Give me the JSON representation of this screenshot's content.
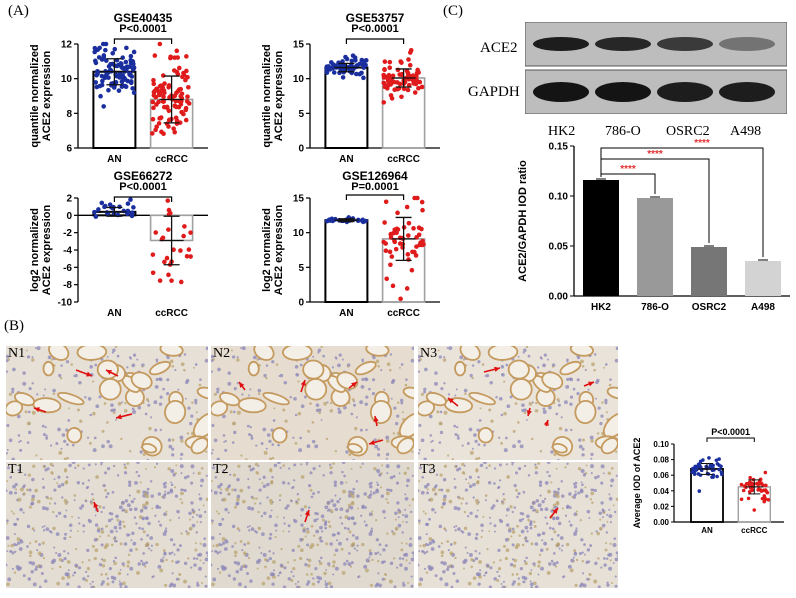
{
  "panels": {
    "A": "(A)",
    "B": "(B)",
    "C": "(C)"
  },
  "chart_data": [
    {
      "id": "gse40435",
      "type": "bar",
      "title": "GSE40435",
      "ylabel": "quantile normalized ACE2 expression",
      "categories": [
        "AN",
        "ccRCC"
      ],
      "values": [
        10.4,
        8.8
      ],
      "sd": [
        0.75,
        1.35
      ],
      "ylim": [
        6,
        12
      ],
      "yticks": [
        6,
        8,
        10,
        12
      ],
      "pvalue": "P<0.0001",
      "colors": [
        "#1a2e9e",
        "#e01b1b"
      ],
      "n_points": [
        100,
        100
      ]
    },
    {
      "id": "gse53757",
      "type": "bar",
      "title": "GSE53757",
      "ylabel": "quantile normalized ACE2 expression",
      "categories": [
        "AN",
        "ccRCC"
      ],
      "values": [
        11.6,
        10.1
      ],
      "sd": [
        0.6,
        1.3
      ],
      "ylim": [
        0,
        15
      ],
      "yticks": [
        0,
        5,
        10,
        15
      ],
      "pvalue": "P<0.0001",
      "colors": [
        "#1a2e9e",
        "#e01b1b"
      ],
      "n_points": [
        72,
        72
      ]
    },
    {
      "id": "gse66272",
      "type": "bar",
      "title": "GSE66272",
      "ylabel": "log2 normalized ACE2 expression",
      "categories": [
        "AN",
        "ccRCC"
      ],
      "values": [
        0.4,
        -2.9
      ],
      "sd": [
        0.5,
        2.8
      ],
      "ylim": [
        -10,
        2
      ],
      "yticks": [
        2,
        0,
        -2,
        -4,
        -6,
        -8,
        -10
      ],
      "pvalue": "P<0.0001",
      "colors": [
        "#1a2e9e",
        "#e01b1b"
      ],
      "n_points": [
        26,
        26
      ]
    },
    {
      "id": "gse126964",
      "type": "bar",
      "title": "GSE126964",
      "ylabel": "log2 normalized ACE2 expression",
      "categories": [
        "AN",
        "ccRCC"
      ],
      "values": [
        11.8,
        9.1
      ],
      "sd": [
        0.2,
        3.1
      ],
      "ylim": [
        0,
        15
      ],
      "yticks": [
        0,
        5,
        10,
        15
      ],
      "pvalue": "P=0.0001",
      "colors": [
        "#1a2e9e",
        "#e01b1b"
      ],
      "n_points": [
        25,
        55
      ]
    },
    {
      "id": "ace2-gapdh",
      "type": "bar",
      "title": "",
      "ylabel": "ACE2/GAPDH IOD ratio",
      "categories": [
        "HK2",
        "786-O",
        "OSRC2",
        "A498"
      ],
      "values": [
        0.116,
        0.098,
        0.049,
        0.035
      ],
      "bar_colors": [
        "#000000",
        "#999999",
        "#767676",
        "#d3d3d3"
      ],
      "ylim": [
        0,
        0.15
      ],
      "yticks": [
        "0.00",
        "0.05",
        "0.10",
        "0.15"
      ],
      "significance": "****",
      "significance_color": "#e03030"
    },
    {
      "id": "average-iod",
      "type": "bar",
      "title": "",
      "ylabel": "Average IOD of ACE2",
      "categories": [
        "AN",
        "ccRCC"
      ],
      "values": [
        0.068,
        0.045
      ],
      "sd": [
        0.007,
        0.009
      ],
      "ylim": [
        0,
        0.1
      ],
      "yticks": [
        "0.00",
        "0.02",
        "0.04",
        "0.06",
        "0.08",
        "0.10"
      ],
      "pvalue": "P<0.0001",
      "colors": [
        "#1a2e9e",
        "#e01b1b"
      ],
      "n_points": [
        45,
        45
      ]
    }
  ],
  "western_blot": {
    "bands": [
      "ACE2",
      "GAPDH"
    ],
    "lanes": [
      "HK2",
      "786-O",
      "OSRC2",
      "A498"
    ],
    "ace2_intensity": [
      0.9,
      0.85,
      0.75,
      0.45
    ],
    "gapdh_intensity": [
      0.95,
      0.95,
      0.9,
      0.9
    ]
  },
  "histology": {
    "normal_labels": [
      "N1",
      "N2",
      "N3"
    ],
    "tumor_labels": [
      "T1",
      "T2",
      "T3"
    ]
  }
}
